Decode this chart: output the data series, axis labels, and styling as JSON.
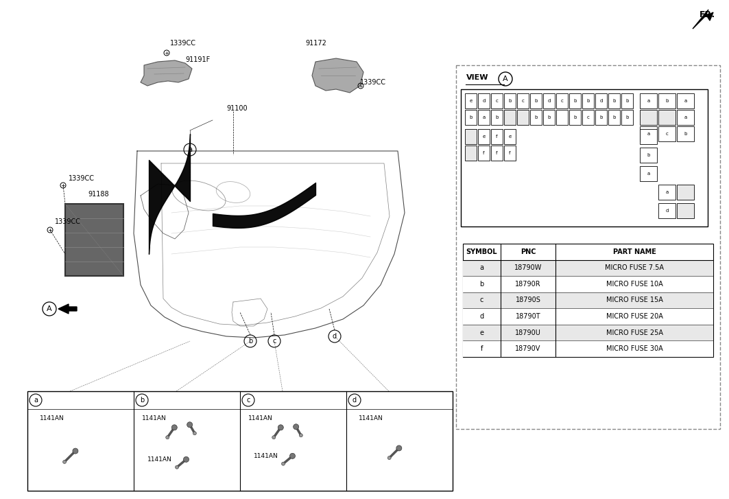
{
  "bg_color": "#ffffff",
  "fig_width": 10.63,
  "fig_height": 7.27,
  "symbol_table": {
    "headers": [
      "SYMBOL",
      "PNC",
      "PART NAME"
    ],
    "rows": [
      [
        "a",
        "18790W",
        "MICRO FUSE 7.5A"
      ],
      [
        "b",
        "18790R",
        "MICRO FUSE 10A"
      ],
      [
        "c",
        "18790S",
        "MICRO FUSE 15A"
      ],
      [
        "d",
        "18790T",
        "MICRO FUSE 20A"
      ],
      [
        "e",
        "18790U",
        "MICRO FUSE 25A"
      ],
      [
        "f",
        "18790V",
        "MICRO FUSE 30A"
      ]
    ]
  },
  "fuse_row1": [
    "e",
    "d",
    "c",
    "b",
    "c",
    "b",
    "d",
    "c",
    "b",
    "b",
    "d",
    "b",
    "b"
  ],
  "fuse_row2": [
    "b",
    "a",
    "b",
    "",
    "",
    "b",
    "b",
    "",
    "b",
    "c",
    "b",
    "b",
    "b"
  ],
  "fuse_row3": [
    "",
    "e",
    "f",
    "e"
  ],
  "fuse_row4": [
    "",
    "f",
    "f",
    "f"
  ],
  "fuse_right_r1": [
    "a",
    "b",
    "a"
  ],
  "fuse_right_r2": [
    "",
    "",
    "a"
  ],
  "fuse_right_r3": [
    "a",
    "c",
    "b"
  ],
  "fuse_solo_col": [
    "",
    "b",
    "a"
  ],
  "fuse_pairs": [
    [
      "a",
      ""
    ],
    [
      "d",
      ""
    ]
  ],
  "light_gray": "#e8e8e8",
  "med_gray": "#c8c8c8",
  "dark_gray": "#555555"
}
